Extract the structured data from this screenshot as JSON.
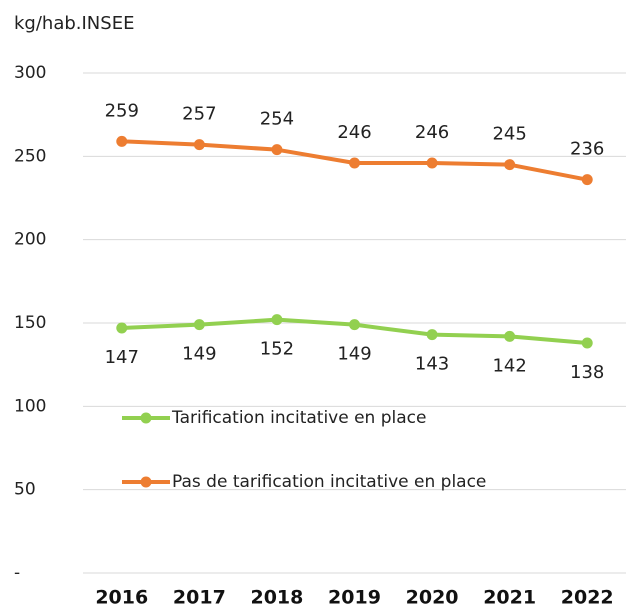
{
  "chart_data": {
    "type": "line",
    "y_label": "kg/hab.INSEE",
    "categories": [
      "2016",
      "2017",
      "2018",
      "2019",
      "2020",
      "2021",
      "2022"
    ],
    "series": [
      {
        "name": "Tarification incitative en place",
        "color": "#92d050",
        "values": [
          147,
          149,
          152,
          149,
          143,
          142,
          138
        ],
        "label_side": "below"
      },
      {
        "name": "Pas de tarification incitative en place",
        "color": "#ed7d31",
        "values": [
          259,
          257,
          254,
          246,
          246,
          245,
          236
        ],
        "label_side": "above"
      }
    ],
    "ylim": [
      0,
      300
    ],
    "yticks": [
      {
        "value": 0,
        "label": "-"
      },
      50,
      100,
      150,
      200,
      250,
      300
    ],
    "grid": true,
    "legend": "left"
  }
}
